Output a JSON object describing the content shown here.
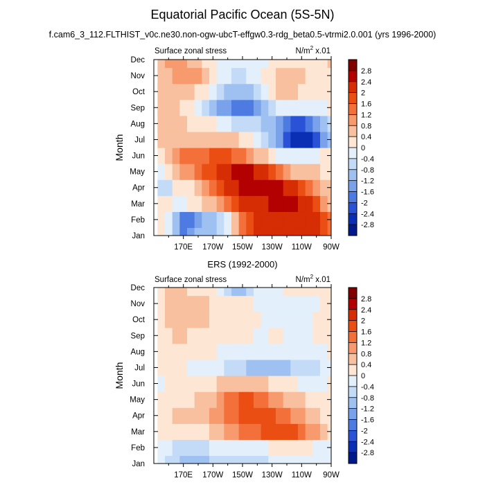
{
  "title": "Equatorial Pacific Ocean (5S-5N)",
  "subtitle": "f.cam6_3_112.FLTHIST_v0c.ne30.non-ogw-ubcT-effgw0.3-rdg_beta0.5-vtrmi2.0.001 (yrs 1996-2000)",
  "units_label": {
    "base": "N/m",
    "sup": "2",
    "suffix": " x.01"
  },
  "colorbar": {
    "levels": [
      "2.8",
      "2.4",
      "2",
      "1.6",
      "1.2",
      "0.8",
      "0.4",
      "0",
      "-0.4",
      "-0.8",
      "-1.2",
      "-1.6",
      "-2",
      "-2.4",
      "-2.8"
    ],
    "colors": [
      "#800000",
      "#b30000",
      "#d62d04",
      "#ea4e12",
      "#f4703a",
      "#f79a6e",
      "#f9c09f",
      "#fde6d4",
      "#e3f0fb",
      "#c3dbf7",
      "#9fc1f1",
      "#7aa2ea",
      "#4e7be1",
      "#2a52d6",
      "#0a2fb5",
      "#001a8c"
    ]
  },
  "chart_data": [
    {
      "type": "heatmap",
      "subtitle": "",
      "left_label": "Surface zonal stress",
      "ylabel": "Month",
      "xlabel": "",
      "x": [
        155,
        160,
        165,
        170,
        175,
        180,
        185,
        190,
        195,
        200,
        205,
        210,
        215,
        220,
        225,
        230,
        235,
        240,
        245,
        250,
        255,
        260,
        265,
        270
      ],
      "x_range": [
        150,
        270
      ],
      "x_ticks": [
        170,
        190,
        210,
        230,
        250,
        270
      ],
      "x_tick_labels": [
        "170E",
        "170W",
        "150W",
        "130W",
        "110W",
        "90W"
      ],
      "y_tick_labels": [
        "Jan",
        "Feb",
        "Mar",
        "Apr",
        "May",
        "Jun",
        "Jul",
        "Aug",
        "Sep",
        "Oct",
        "Nov",
        "Dec"
      ],
      "z": [
        [
          0.2,
          -0.4,
          -1.0,
          -1.8,
          -1.6,
          -1.2,
          -1.0,
          -1.0,
          -0.6,
          -0.2,
          0.6,
          1.4,
          1.8,
          2.0,
          2.0,
          2.0,
          2.0,
          2.0,
          2.0,
          2.2,
          2.2,
          2.0,
          1.6,
          1.2
        ],
        [
          0.2,
          -0.4,
          -1.0,
          -2.0,
          -1.8,
          -1.4,
          -1.2,
          -1.2,
          -0.8,
          -0.4,
          0.6,
          1.4,
          1.8,
          2.0,
          2.0,
          2.0,
          2.0,
          2.2,
          2.2,
          2.2,
          2.2,
          2.0,
          1.6,
          1.2
        ],
        [
          0.0,
          0.0,
          -0.2,
          -0.4,
          0.0,
          0.2,
          0.4,
          0.6,
          0.8,
          1.2,
          1.6,
          2.0,
          2.2,
          2.2,
          2.2,
          2.4,
          2.4,
          2.4,
          2.4,
          2.2,
          2.0,
          1.6,
          1.0,
          0.6
        ],
        [
          -0.6,
          -0.6,
          0.0,
          0.2,
          0.2,
          0.6,
          1.0,
          1.4,
          1.8,
          2.0,
          2.2,
          2.4,
          2.6,
          2.6,
          2.6,
          2.4,
          2.4,
          2.2,
          2.0,
          1.6,
          1.2,
          0.8,
          0.4,
          0.4
        ],
        [
          -0.2,
          0.0,
          0.4,
          0.8,
          1.0,
          1.2,
          1.6,
          1.8,
          2.0,
          2.2,
          2.4,
          2.4,
          2.4,
          2.2,
          2.0,
          1.8,
          1.4,
          1.0,
          0.6,
          0.4,
          0.4,
          0.4,
          0.2,
          0.2
        ],
        [
          0.2,
          0.4,
          0.8,
          1.2,
          1.2,
          1.2,
          1.4,
          1.6,
          1.6,
          1.6,
          1.4,
          1.2,
          1.0,
          0.6,
          0.4,
          0.0,
          -0.2,
          -0.4,
          -0.4,
          -0.4,
          -0.4,
          -0.2,
          0.0,
          0.2
        ],
        [
          0.4,
          0.4,
          0.4,
          0.6,
          0.6,
          0.6,
          0.6,
          0.6,
          0.6,
          0.4,
          0.4,
          0.2,
          0.0,
          -0.4,
          -0.8,
          -1.2,
          -1.6,
          -2.2,
          -2.6,
          -2.8,
          -2.6,
          -2.2,
          -1.6,
          -1.0
        ],
        [
          0.4,
          0.4,
          0.4,
          0.4,
          0.2,
          0.2,
          0.2,
          0.0,
          -0.2,
          -0.4,
          -0.6,
          -0.6,
          -0.6,
          -0.8,
          -1.0,
          -1.2,
          -1.6,
          -2.0,
          -2.2,
          -2.2,
          -2.0,
          -1.6,
          -1.2,
          -0.8
        ],
        [
          0.4,
          0.4,
          0.4,
          0.2,
          0.0,
          -0.2,
          -0.6,
          -1.0,
          -1.4,
          -1.6,
          -1.8,
          -2.0,
          -1.8,
          -1.4,
          -1.0,
          -0.6,
          -0.4,
          -0.4,
          -0.4,
          -0.4,
          -0.4,
          -0.2,
          -0.2,
          0.0
        ],
        [
          0.6,
          0.4,
          0.4,
          0.4,
          0.4,
          0.2,
          0.0,
          -0.4,
          -0.8,
          -1.0,
          -1.2,
          -1.2,
          -1.0,
          -0.6,
          -0.2,
          0.2,
          0.4,
          0.4,
          0.4,
          0.2,
          0.2,
          0.2,
          0.2,
          0.2
        ],
        [
          0.6,
          0.6,
          0.8,
          0.8,
          1.0,
          0.8,
          0.6,
          0.2,
          -0.2,
          -0.4,
          -0.6,
          -0.6,
          -0.4,
          -0.2,
          0.0,
          0.2,
          0.4,
          0.4,
          0.4,
          0.4,
          0.2,
          0.2,
          0.2,
          0.2
        ],
        [
          0.6,
          1.0,
          1.0,
          0.8,
          0.6,
          0.4,
          0.2,
          0.0,
          -0.2,
          -0.4,
          -0.4,
          -0.4,
          -0.4,
          -0.4,
          -0.2,
          0.0,
          0.2,
          0.2,
          0.2,
          0.2,
          0.2,
          0.2,
          0.2,
          0.4
        ]
      ]
    },
    {
      "type": "heatmap",
      "subtitle": "ERS (1992-2000)",
      "left_label": "Surface zonal stress",
      "ylabel": "Month",
      "xlabel": "",
      "x": [
        155,
        160,
        165,
        170,
        175,
        180,
        185,
        190,
        195,
        200,
        205,
        210,
        215,
        220,
        225,
        230,
        235,
        240,
        245,
        250,
        255,
        260,
        265,
        270
      ],
      "x_range": [
        150,
        270
      ],
      "x_ticks": [
        170,
        190,
        210,
        230,
        250,
        270
      ],
      "x_tick_labels": [
        "170E",
        "170W",
        "150W",
        "130W",
        "110W",
        "90W"
      ],
      "y_tick_labels": [
        "Jan",
        "Feb",
        "Mar",
        "Apr",
        "May",
        "Jun",
        "Jul",
        "Aug",
        "Sep",
        "Oct",
        "Nov",
        "Dec"
      ],
      "z": [
        [
          -0.4,
          -0.6,
          -0.8,
          -1.0,
          -1.2,
          -1.2,
          -1.0,
          -0.8,
          -0.6,
          -0.6,
          -0.6,
          -0.8,
          -0.8,
          -0.6,
          -0.6,
          -0.4,
          -0.4,
          -0.2,
          -0.2,
          -0.2,
          -0.2,
          -0.2,
          -0.2,
          -0.2
        ],
        [
          -0.2,
          -0.4,
          -0.6,
          -0.6,
          -0.8,
          -0.8,
          -0.6,
          -0.4,
          -0.4,
          -0.4,
          -0.4,
          -0.4,
          -0.4,
          -0.2,
          -0.2,
          0.0,
          0.2,
          0.2,
          0.2,
          0.0,
          0.0,
          -0.2,
          -0.2,
          -0.2
        ],
        [
          0.0,
          0.2,
          0.2,
          0.2,
          0.2,
          0.2,
          0.2,
          0.4,
          0.6,
          0.8,
          1.0,
          1.2,
          1.2,
          1.4,
          1.6,
          1.8,
          1.8,
          1.8,
          1.6,
          1.4,
          1.0,
          0.8,
          0.4,
          0.2
        ],
        [
          0.2,
          0.2,
          0.4,
          0.4,
          0.4,
          0.4,
          0.6,
          0.8,
          1.0,
          1.2,
          1.4,
          1.6,
          1.8,
          1.8,
          1.6,
          1.6,
          1.4,
          1.2,
          1.0,
          0.8,
          0.6,
          0.4,
          0.2,
          0.2
        ],
        [
          0.0,
          0.2,
          0.2,
          0.2,
          0.2,
          0.4,
          0.4,
          0.6,
          0.8,
          1.2,
          1.4,
          1.6,
          1.6,
          1.4,
          1.2,
          1.0,
          0.8,
          0.6,
          0.4,
          0.4,
          0.2,
          0.2,
          0.2,
          0.0
        ],
        [
          -0.2,
          0.0,
          0.0,
          0.0,
          0.0,
          0.2,
          0.2,
          0.2,
          0.4,
          0.4,
          0.6,
          0.6,
          0.6,
          0.4,
          0.4,
          0.2,
          0.2,
          0.0,
          0.0,
          -0.2,
          -0.2,
          -0.2,
          -0.2,
          0.0
        ],
        [
          0.2,
          0.2,
          0.0,
          0.0,
          -0.2,
          -0.2,
          -0.2,
          -0.4,
          -0.4,
          -0.6,
          -0.8,
          -0.8,
          -1.0,
          -1.0,
          -1.0,
          -1.2,
          -1.0,
          -1.0,
          -0.8,
          -0.8,
          -0.8,
          -0.6,
          -0.4,
          -0.2
        ],
        [
          0.2,
          0.2,
          0.2,
          0.2,
          0.2,
          0.0,
          0.0,
          0.0,
          -0.2,
          -0.2,
          -0.4,
          -0.4,
          -0.4,
          -0.4,
          -0.4,
          -0.4,
          -0.4,
          -0.4,
          -0.4,
          -0.4,
          -0.2,
          -0.2,
          -0.2,
          0.0
        ],
        [
          0.2,
          0.2,
          0.4,
          0.4,
          0.2,
          0.2,
          0.2,
          0.2,
          0.2,
          0.0,
          0.0,
          0.0,
          0.0,
          -0.2,
          -0.2,
          0.0,
          0.0,
          -0.2,
          -0.2,
          -0.2,
          -0.2,
          0.0,
          0.0,
          0.0
        ],
        [
          0.2,
          0.4,
          0.4,
          0.6,
          0.4,
          0.4,
          0.4,
          0.2,
          0.2,
          0.2,
          0.2,
          0.2,
          0.2,
          0.0,
          -0.2,
          -0.2,
          -0.4,
          -0.4,
          -0.2,
          -0.2,
          -0.2,
          0.0,
          0.0,
          0.0
        ],
        [
          0.2,
          0.4,
          0.6,
          0.6,
          0.6,
          0.4,
          0.4,
          0.2,
          0.2,
          0.2,
          0.2,
          0.2,
          0.0,
          -0.2,
          -0.2,
          -0.4,
          -0.4,
          -0.4,
          -0.4,
          -0.2,
          -0.2,
          -0.2,
          0.0,
          0.0
        ],
        [
          0.2,
          0.4,
          0.4,
          0.4,
          0.2,
          0.2,
          0.0,
          0.0,
          -0.4,
          -0.6,
          -1.0,
          -1.0,
          -0.8,
          -0.4,
          -0.2,
          -0.2,
          -0.2,
          0.0,
          0.0,
          0.0,
          0.0,
          0.0,
          0.0,
          0.0
        ]
      ]
    }
  ]
}
